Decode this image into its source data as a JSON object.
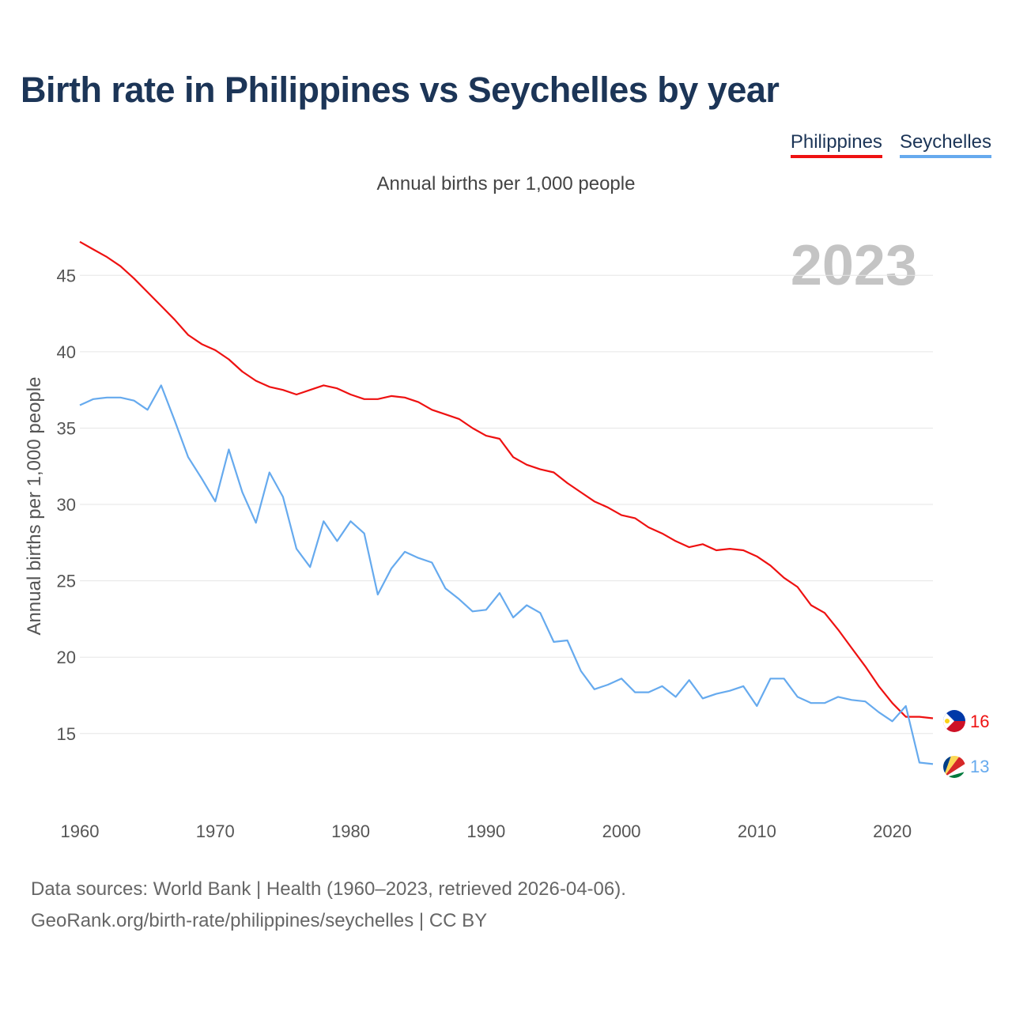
{
  "title": "Birth rate in Philippines vs Seychelles by year",
  "legend": [
    {
      "name": "Philippines",
      "color": "#ee1111"
    },
    {
      "name": "Seychelles",
      "color": "#66aaee"
    }
  ],
  "footer": {
    "line1": "Data sources: World Bank | Health (1960–2023, retrieved 2026-04-06).",
    "line2": "GeoRank.org/birth-rate/philippines/seychelles | CC BY"
  },
  "chart_data": {
    "type": "line",
    "subtitle": "Annual births per 1,000 people",
    "ylabel": "Annual births per 1,000 people",
    "xlabel": "",
    "year_watermark": "2023",
    "xlim": [
      1960,
      2023
    ],
    "ylim": [
      10.9,
      47.5
    ],
    "xticks": [
      1960,
      1970,
      1980,
      1990,
      2000,
      2010,
      2020
    ],
    "yticks": [
      15,
      20,
      25,
      30,
      35,
      40,
      45
    ],
    "grid": true,
    "series": [
      {
        "name": "Philippines",
        "color": "#ee1111",
        "end_label": "16",
        "x": [
          1960,
          1961,
          1962,
          1963,
          1964,
          1965,
          1966,
          1967,
          1968,
          1969,
          1970,
          1971,
          1972,
          1973,
          1974,
          1975,
          1976,
          1977,
          1978,
          1979,
          1980,
          1981,
          1982,
          1983,
          1984,
          1985,
          1986,
          1987,
          1988,
          1989,
          1990,
          1991,
          1992,
          1993,
          1994,
          1995,
          1996,
          1997,
          1998,
          1999,
          2000,
          2001,
          2002,
          2003,
          2004,
          2005,
          2006,
          2007,
          2008,
          2009,
          2010,
          2011,
          2012,
          2013,
          2014,
          2015,
          2016,
          2017,
          2018,
          2019,
          2020,
          2021,
          2022,
          2023
        ],
        "values": [
          47.2,
          46.7,
          46.2,
          45.6,
          44.8,
          43.9,
          43.0,
          42.1,
          41.1,
          40.5,
          40.1,
          39.5,
          38.7,
          38.1,
          37.7,
          37.5,
          37.2,
          37.5,
          37.8,
          37.6,
          37.2,
          36.9,
          36.9,
          37.1,
          37.0,
          36.7,
          36.2,
          35.9,
          35.6,
          35.0,
          34.5,
          34.3,
          33.1,
          32.6,
          32.3,
          32.1,
          31.4,
          30.8,
          30.2,
          29.8,
          29.3,
          29.1,
          28.5,
          28.1,
          27.6,
          27.2,
          27.4,
          27.0,
          27.1,
          27.0,
          26.6,
          26.0,
          25.2,
          24.6,
          23.4,
          22.9,
          21.8,
          20.6,
          19.4,
          18.1,
          17.0,
          16.1,
          16.1,
          16.0
        ]
      },
      {
        "name": "Seychelles",
        "color": "#66aaee",
        "end_label": "13",
        "x": [
          1960,
          1961,
          1962,
          1963,
          1964,
          1965,
          1966,
          1967,
          1968,
          1969,
          1970,
          1971,
          1972,
          1973,
          1974,
          1975,
          1976,
          1977,
          1978,
          1979,
          1980,
          1981,
          1982,
          1983,
          1984,
          1985,
          1986,
          1987,
          1988,
          1989,
          1990,
          1991,
          1992,
          1993,
          1994,
          1995,
          1996,
          1997,
          1998,
          1999,
          2000,
          2001,
          2002,
          2003,
          2004,
          2005,
          2006,
          2007,
          2008,
          2009,
          2010,
          2011,
          2012,
          2013,
          2014,
          2015,
          2016,
          2017,
          2018,
          2019,
          2020,
          2021,
          2022,
          2023
        ],
        "values": [
          36.5,
          36.9,
          37.0,
          37.0,
          36.8,
          36.2,
          37.8,
          35.5,
          33.1,
          31.7,
          30.2,
          33.6,
          30.8,
          28.8,
          32.1,
          30.5,
          27.1,
          25.9,
          28.9,
          27.6,
          28.9,
          28.1,
          24.1,
          25.8,
          26.9,
          26.5,
          26.2,
          24.5,
          23.8,
          23.0,
          23.1,
          24.2,
          22.6,
          23.4,
          22.9,
          21.0,
          21.1,
          19.1,
          17.9,
          18.2,
          18.6,
          17.7,
          17.7,
          18.1,
          17.4,
          18.5,
          17.3,
          17.6,
          17.8,
          18.1,
          16.8,
          18.6,
          18.6,
          17.4,
          17.0,
          17.0,
          17.4,
          17.2,
          17.1,
          16.4,
          15.8,
          16.8,
          13.1,
          13.0
        ]
      }
    ]
  }
}
